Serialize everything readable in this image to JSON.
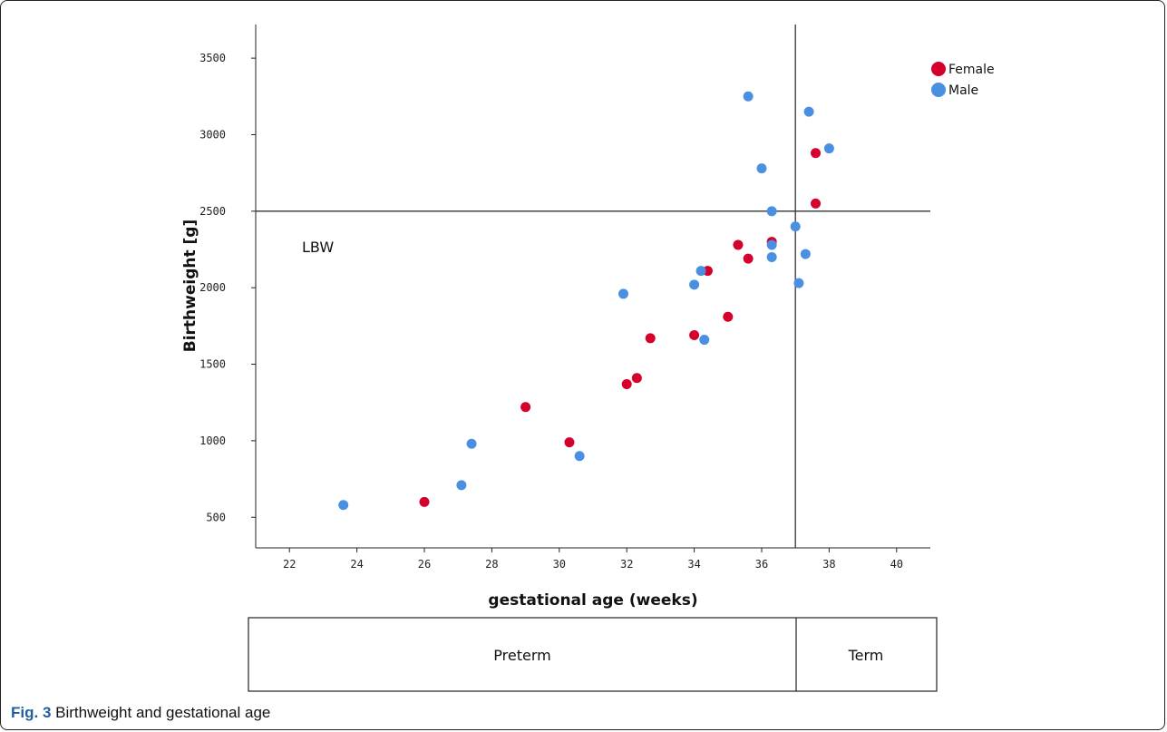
{
  "caption": {
    "label": "Fig. 3",
    "text": "Birthweight and gestational age"
  },
  "chart_data": {
    "type": "scatter",
    "xlabel": "gestational age (weeks)",
    "ylabel": "Birthweight [g]",
    "xlim": [
      21,
      41
    ],
    "ylim": [
      300,
      3720
    ],
    "x_ticks": [
      22,
      24,
      26,
      28,
      30,
      32,
      34,
      36,
      38,
      40
    ],
    "y_ticks": [
      500,
      1000,
      1500,
      2000,
      2500,
      3000,
      3500
    ],
    "grid": false,
    "legend_position": "top-right",
    "reference_lines": {
      "x": 37,
      "y": 2500
    },
    "annotations": [
      "LBW"
    ],
    "regions": [
      "Preterm",
      "Term"
    ],
    "series": [
      {
        "name": "Female",
        "color": "#d5002c",
        "points": [
          {
            "x": 26.0,
            "y": 600
          },
          {
            "x": 29.0,
            "y": 1220
          },
          {
            "x": 30.3,
            "y": 990
          },
          {
            "x": 32.0,
            "y": 1370
          },
          {
            "x": 32.3,
            "y": 1410
          },
          {
            "x": 32.7,
            "y": 1670
          },
          {
            "x": 34.0,
            "y": 1690
          },
          {
            "x": 34.4,
            "y": 2110
          },
          {
            "x": 35.0,
            "y": 1810
          },
          {
            "x": 35.3,
            "y": 2280
          },
          {
            "x": 35.6,
            "y": 2190
          },
          {
            "x": 36.3,
            "y": 2300
          },
          {
            "x": 37.6,
            "y": 2880
          },
          {
            "x": 37.6,
            "y": 2550
          }
        ]
      },
      {
        "name": "Male",
        "color": "#4a90e2",
        "points": [
          {
            "x": 23.6,
            "y": 580
          },
          {
            "x": 27.1,
            "y": 710
          },
          {
            "x": 27.4,
            "y": 980
          },
          {
            "x": 30.6,
            "y": 900
          },
          {
            "x": 31.9,
            "y": 1960
          },
          {
            "x": 34.0,
            "y": 2020
          },
          {
            "x": 34.2,
            "y": 2110
          },
          {
            "x": 34.3,
            "y": 1660
          },
          {
            "x": 35.6,
            "y": 3250
          },
          {
            "x": 36.0,
            "y": 2780
          },
          {
            "x": 36.3,
            "y": 2500
          },
          {
            "x": 36.3,
            "y": 2280
          },
          {
            "x": 36.3,
            "y": 2200
          },
          {
            "x": 37.0,
            "y": 2400
          },
          {
            "x": 37.1,
            "y": 2030
          },
          {
            "x": 37.3,
            "y": 2220
          },
          {
            "x": 37.4,
            "y": 3150
          },
          {
            "x": 38.0,
            "y": 2910
          }
        ]
      }
    ]
  }
}
